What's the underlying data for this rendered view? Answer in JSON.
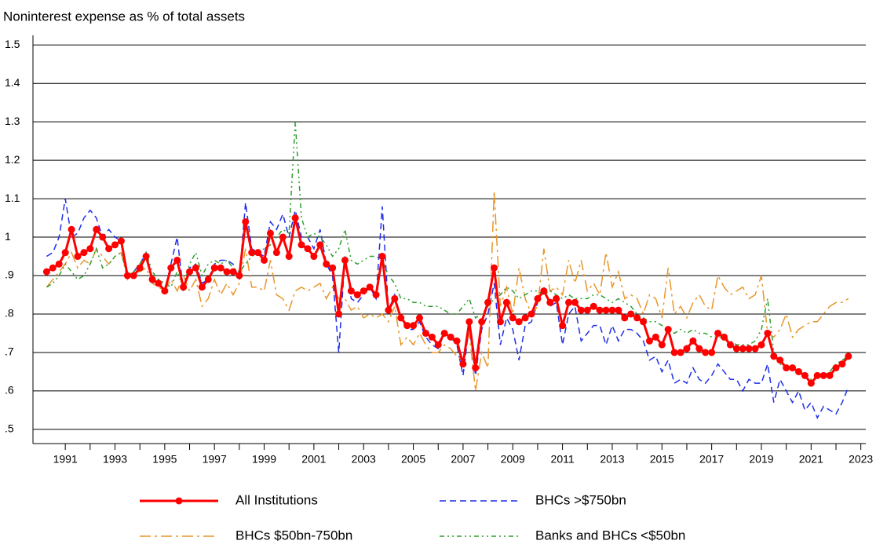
{
  "chart_data": {
    "type": "line",
    "title": "Noninterest expense as % of total assets",
    "x": [
      1990.25,
      1990.5,
      1990.75,
      1991,
      1991.25,
      1991.5,
      1991.75,
      1992,
      1992.25,
      1992.5,
      1992.75,
      1993,
      1993.25,
      1993.5,
      1993.75,
      1994,
      1994.25,
      1994.5,
      1994.75,
      1995,
      1995.25,
      1995.5,
      1995.75,
      1996,
      1996.25,
      1996.5,
      1996.75,
      1997,
      1997.25,
      1997.5,
      1997.75,
      1998,
      1998.25,
      1998.5,
      1998.75,
      1999,
      1999.25,
      1999.5,
      1999.75,
      2000,
      2000.25,
      2000.5,
      2000.75,
      2001,
      2001.25,
      2001.5,
      2001.75,
      2002,
      2002.25,
      2002.5,
      2002.75,
      2003,
      2003.25,
      2003.5,
      2003.75,
      2004,
      2004.25,
      2004.5,
      2004.75,
      2005,
      2005.25,
      2005.5,
      2005.75,
      2006,
      2006.25,
      2006.5,
      2006.75,
      2007,
      2007.25,
      2007.5,
      2007.75,
      2008,
      2008.25,
      2008.5,
      2008.75,
      2009,
      2009.25,
      2009.5,
      2009.75,
      2010,
      2010.25,
      2010.5,
      2010.75,
      2011,
      2011.25,
      2011.5,
      2011.75,
      2012,
      2012.25,
      2012.5,
      2012.75,
      2013,
      2013.25,
      2013.5,
      2013.75,
      2014,
      2014.25,
      2014.5,
      2014.75,
      2015,
      2015.25,
      2015.5,
      2015.75,
      2016,
      2016.25,
      2016.5,
      2016.75,
      2017,
      2017.25,
      2017.5,
      2017.75,
      2018,
      2018.25,
      2018.5,
      2018.75,
      2019,
      2019.25,
      2019.5,
      2019.75,
      2020,
      2020.25,
      2020.5,
      2020.75,
      2021,
      2021.25,
      2021.5,
      2021.75,
      2022,
      2022.25,
      2022.5
    ],
    "series": [
      {
        "name": "All Institutions",
        "color": "#ff0000",
        "dash": "solid",
        "marker": true,
        "values": [
          0.91,
          0.92,
          0.93,
          0.96,
          1.02,
          0.95,
          0.96,
          0.97,
          1.02,
          1.0,
          0.97,
          0.98,
          0.99,
          0.9,
          0.9,
          0.92,
          0.95,
          0.89,
          0.88,
          0.86,
          0.92,
          0.94,
          0.87,
          0.91,
          0.92,
          0.87,
          0.89,
          0.92,
          0.92,
          0.91,
          0.91,
          0.9,
          1.04,
          0.96,
          0.96,
          0.94,
          1.01,
          0.96,
          1.0,
          0.95,
          1.05,
          0.98,
          0.97,
          0.95,
          0.98,
          0.93,
          0.92,
          0.8,
          0.94,
          0.86,
          0.85,
          0.86,
          0.87,
          0.85,
          0.95,
          0.81,
          0.84,
          0.79,
          0.77,
          0.77,
          0.79,
          0.75,
          0.74,
          0.72,
          0.75,
          0.74,
          0.73,
          0.67,
          0.78,
          0.66,
          0.78,
          0.83,
          0.92,
          0.78,
          0.83,
          0.79,
          0.78,
          0.79,
          0.8,
          0.84,
          0.86,
          0.83,
          0.84,
          0.77,
          0.83,
          0.83,
          0.81,
          0.81,
          0.82,
          0.81,
          0.81,
          0.81,
          0.81,
          0.79,
          0.8,
          0.79,
          0.78,
          0.73,
          0.74,
          0.72,
          0.76,
          0.7,
          0.7,
          0.71,
          0.73,
          0.71,
          0.7,
          0.7,
          0.75,
          0.74,
          0.72,
          0.71,
          0.71,
          0.71,
          0.71,
          0.72,
          0.75,
          0.69,
          0.68,
          0.66,
          0.66,
          0.65,
          0.64,
          0.62,
          0.64,
          0.64,
          0.64,
          0.66,
          0.67,
          0.69
        ]
      },
      {
        "name": "BHCs >$750bn",
        "color": "#1f2ee8",
        "dash": "dash",
        "values": [
          0.95,
          0.96,
          1.0,
          1.1,
          1.0,
          1.01,
          1.05,
          1.07,
          1.05,
          1.0,
          1.02,
          1.0,
          0.99,
          0.9,
          0.91,
          0.93,
          0.96,
          0.88,
          0.89,
          0.86,
          0.93,
          1.0,
          0.86,
          0.92,
          0.93,
          0.88,
          0.89,
          0.93,
          0.94,
          0.94,
          0.93,
          0.89,
          1.09,
          0.97,
          0.96,
          0.95,
          1.04,
          1.02,
          1.06,
          1.0,
          1.07,
          1.0,
          1.0,
          0.97,
          1.02,
          0.93,
          0.9,
          0.7,
          0.95,
          0.84,
          0.83,
          0.85,
          0.87,
          0.84,
          1.08,
          0.81,
          0.85,
          0.79,
          0.76,
          0.76,
          0.78,
          0.74,
          0.72,
          0.71,
          0.75,
          0.74,
          0.72,
          0.64,
          0.77,
          0.64,
          0.76,
          0.8,
          0.88,
          0.72,
          0.79,
          0.76,
          0.68,
          0.77,
          0.78,
          0.83,
          0.87,
          0.82,
          0.83,
          0.72,
          0.8,
          0.82,
          0.73,
          0.75,
          0.77,
          0.77,
          0.72,
          0.77,
          0.73,
          0.76,
          0.76,
          0.75,
          0.73,
          0.68,
          0.69,
          0.65,
          0.68,
          0.62,
          0.63,
          0.62,
          0.66,
          0.63,
          0.62,
          0.64,
          0.67,
          0.65,
          0.63,
          0.63,
          0.6,
          0.63,
          0.62,
          0.62,
          0.67,
          0.57,
          0.63,
          0.6,
          0.57,
          0.6,
          0.55,
          0.57,
          0.53,
          0.56,
          0.55,
          0.54,
          0.57,
          0.61
        ]
      },
      {
        "name": "BHCs $50bn-750bn",
        "color": "#e8962a",
        "dash": "dashdot",
        "values": [
          0.87,
          0.89,
          0.91,
          0.93,
          0.96,
          0.92,
          0.94,
          0.93,
          0.97,
          0.95,
          0.93,
          0.95,
          0.96,
          0.89,
          0.91,
          0.91,
          0.92,
          0.88,
          0.87,
          0.86,
          0.89,
          0.86,
          0.9,
          0.86,
          0.89,
          0.82,
          0.84,
          0.89,
          0.85,
          0.88,
          0.85,
          0.88,
          0.97,
          0.87,
          0.87,
          0.86,
          0.94,
          0.85,
          0.84,
          0.81,
          0.86,
          0.87,
          0.86,
          0.87,
          0.88,
          0.84,
          0.87,
          0.84,
          0.84,
          0.81,
          0.82,
          0.79,
          0.8,
          0.79,
          0.8,
          0.78,
          0.82,
          0.72,
          0.74,
          0.72,
          0.75,
          0.72,
          0.7,
          0.7,
          0.72,
          0.71,
          0.69,
          0.68,
          0.75,
          0.6,
          0.7,
          0.66,
          1.12,
          0.82,
          0.87,
          0.8,
          0.92,
          0.84,
          0.8,
          0.82,
          0.97,
          0.86,
          0.87,
          0.85,
          0.94,
          0.88,
          0.94,
          0.86,
          0.88,
          0.85,
          0.96,
          0.87,
          0.91,
          0.84,
          0.85,
          0.84,
          0.8,
          0.85,
          0.84,
          0.79,
          0.92,
          0.8,
          0.82,
          0.79,
          0.83,
          0.85,
          0.82,
          0.81,
          0.9,
          0.87,
          0.85,
          0.86,
          0.87,
          0.84,
          0.85,
          0.9,
          0.75,
          0.74,
          0.76,
          0.8,
          0.74,
          0.76,
          0.77,
          0.78,
          0.78,
          0.8,
          0.82,
          0.83,
          0.83,
          0.84
        ]
      },
      {
        "name": "Banks and BHCs <$50bn",
        "color": "#2e9e2e",
        "dash": "dashdotdot",
        "values": [
          0.87,
          0.88,
          0.9,
          0.93,
          0.91,
          0.89,
          0.9,
          0.93,
          0.97,
          0.92,
          0.93,
          0.95,
          0.96,
          0.9,
          0.91,
          0.93,
          0.96,
          0.91,
          0.89,
          0.88,
          0.87,
          0.91,
          0.87,
          0.93,
          0.96,
          0.9,
          0.93,
          0.94,
          0.93,
          0.94,
          0.92,
          0.91,
          0.93,
          0.95,
          0.96,
          0.97,
          0.98,
          1.0,
          1.02,
          1.01,
          1.3,
          1.05,
          1.0,
          1.01,
          1.0,
          0.98,
          0.95,
          0.97,
          1.02,
          0.94,
          0.93,
          0.94,
          0.95,
          0.95,
          0.94,
          0.9,
          0.88,
          0.84,
          0.84,
          0.83,
          0.83,
          0.82,
          0.82,
          0.82,
          0.81,
          0.8,
          0.8,
          0.82,
          0.84,
          0.79,
          0.8,
          0.82,
          0.84,
          0.85,
          0.87,
          0.86,
          0.84,
          0.85,
          0.86,
          0.86,
          0.85,
          0.86,
          0.85,
          0.84,
          0.85,
          0.84,
          0.84,
          0.84,
          0.85,
          0.85,
          0.84,
          0.83,
          0.84,
          0.83,
          0.82,
          0.8,
          0.79,
          0.78,
          0.78,
          0.77,
          0.76,
          0.75,
          0.76,
          0.75,
          0.76,
          0.75,
          0.75,
          0.74,
          0.74,
          0.74,
          0.73,
          0.72,
          0.72,
          0.72,
          0.73,
          0.76,
          0.84,
          0.7,
          0.67,
          0.66,
          0.66,
          0.65,
          0.64,
          0.63,
          0.64,
          0.64,
          0.65,
          0.67,
          0.68,
          0.69
        ]
      }
    ],
    "xlim": [
      1989.7,
      2023.2
    ],
    "xticks": [
      1991,
      1993,
      1995,
      1997,
      1999,
      2001,
      2003,
      2005,
      2007,
      2009,
      2011,
      2013,
      2015,
      2017,
      2019,
      2021,
      2023
    ],
    "ylim": [
      0.463,
      1.525
    ],
    "yticks": [
      {
        "value": 0.5,
        "label": ".5"
      },
      {
        "value": 0.6,
        "label": ".6"
      },
      {
        "value": 0.7,
        "label": ".7"
      },
      {
        "value": 0.8,
        "label": ".8"
      },
      {
        "value": 0.9,
        "label": ".9"
      },
      1,
      1.1,
      1.2,
      1.3,
      1.4,
      1.5
    ],
    "grid": true
  }
}
